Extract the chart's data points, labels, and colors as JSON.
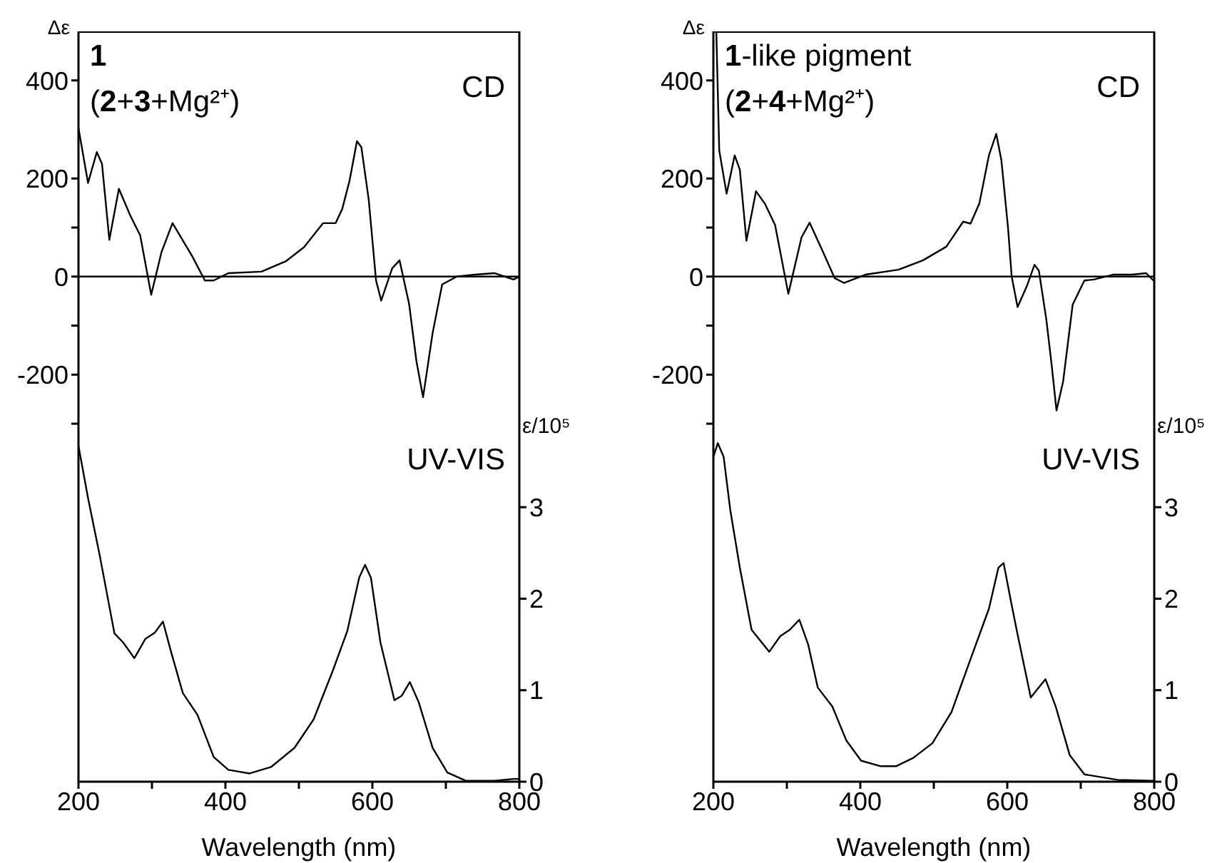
{
  "chart_data": [
    {
      "type": "line",
      "xlabel": "Wavelength (nm)",
      "ylabel": "Δε",
      "y2label": "ε/10⁵",
      "annotations": [
        "1",
        "(2+3+Mg²⁺)",
        "CD",
        "UV-VIS"
      ],
      "xlim": [
        200,
        800
      ],
      "xticks": [
        200,
        {
          "value": 300,
          "label": null
        },
        400,
        {
          "value": 500,
          "label": null
        },
        600,
        {
          "value": 700,
          "label": null
        },
        800
      ],
      "ylim": [
        -1030,
        500
      ],
      "yticks": [
        -200,
        {
          "value": -300,
          "label": null
        },
        {
          "value": -100,
          "label": null
        },
        0,
        {
          "value": 100,
          "label": null
        },
        200,
        400
      ],
      "y2lim": [
        0,
        8.2
      ],
      "y2ticks": [
        0,
        1,
        2,
        3
      ],
      "marker": "none",
      "line_style": "solid",
      "ref_lines": [
        {
          "axis": "y",
          "value": 0,
          "color": "#000000"
        }
      ],
      "series": [
        {
          "color": "#000000",
          "x": [
            200,
            213,
            225,
            232,
            242,
            255,
            271,
            284,
            299,
            313,
            328,
            355,
            372,
            384,
            404,
            449,
            482,
            507,
            533,
            550,
            559,
            569,
            579,
            585,
            595,
            605,
            612,
            627,
            637,
            650,
            660,
            669,
            682,
            695,
            715,
            740,
            766,
            792,
            800
          ],
          "values": [
            303,
            191,
            254,
            230,
            75,
            179,
            123,
            84,
            -37,
            50,
            109,
            41,
            -8,
            -8,
            7,
            10,
            31,
            60,
            109,
            109,
            138,
            196,
            276,
            264,
            157,
            -8,
            -49,
            17,
            33,
            -56,
            -173,
            -246,
            -115,
            -16,
            0,
            4,
            7,
            -6,
            0
          ]
        },
        {
          "color": "#000000",
          "axis": "y2",
          "x": [
            200,
            213,
            229,
            249,
            261,
            276,
            291,
            304,
            315,
            326,
            342,
            362,
            384,
            404,
            433,
            462,
            494,
            520,
            546,
            566,
            582,
            590,
            598,
            611,
            630,
            640,
            651,
            663,
            682,
            702,
            727,
            766,
            792,
            800
          ],
          "values": [
            3.67,
            3.1,
            2.47,
            1.62,
            1.52,
            1.35,
            1.56,
            1.63,
            1.75,
            1.42,
            0.97,
            0.73,
            0.27,
            0.13,
            0.09,
            0.16,
            0.37,
            0.68,
            1.21,
            1.65,
            2.23,
            2.37,
            2.23,
            1.52,
            0.89,
            0.94,
            1.09,
            0.87,
            0.37,
            0.1,
            0.01,
            0.01,
            0.03,
            0.03
          ]
        }
      ]
    },
    {
      "type": "line",
      "xlabel": "Wavelength (nm)",
      "ylabel": "Δε",
      "y2label": "ε/10⁵",
      "annotations": [
        "1-like pigment",
        "(2+4+Mg²⁺)",
        "CD",
        "UV-VIS"
      ],
      "xlim": [
        200,
        800
      ],
      "xticks": [
        200,
        {
          "value": 300,
          "label": null
        },
        400,
        {
          "value": 500,
          "label": null
        },
        600,
        {
          "value": 700,
          "label": null
        },
        800
      ],
      "ylim": [
        -1030,
        500
      ],
      "yticks": [
        -200,
        {
          "value": -300,
          "label": null
        },
        {
          "value": -100,
          "label": null
        },
        0,
        {
          "value": 100,
          "label": null
        },
        200,
        400
      ],
      "y2lim": [
        0,
        8.2
      ],
      "y2ticks": [
        0,
        1,
        2,
        3
      ],
      "marker": "none",
      "line_style": "solid",
      "ref_lines": [
        {
          "axis": "y",
          "value": 0,
          "color": "#000000"
        }
      ],
      "series": [
        {
          "color": "#000000",
          "x": [
            204,
            208,
            218,
            229,
            236,
            245,
            258,
            270,
            284,
            302,
            320,
            331,
            349,
            365,
            378,
            407,
            452,
            485,
            517,
            540,
            550,
            562,
            575,
            585,
            592,
            601,
            606,
            614,
            627,
            637,
            643,
            653,
            660,
            667,
            676,
            689,
            705,
            718,
            744,
            770,
            789,
            799
          ],
          "values": [
            500,
            257,
            169,
            247,
            218,
            73,
            174,
            149,
            105,
            -35,
            80,
            110,
            51,
            -3,
            -13,
            4,
            14,
            33,
            61,
            112,
            108,
            149,
            247,
            291,
            237,
            100,
            0,
            -62,
            -18,
            24,
            12,
            -86,
            -175,
            -273,
            -214,
            -57,
            -8,
            -6,
            4,
            4,
            7,
            -8
          ]
        },
        {
          "color": "#000000",
          "axis": "y2",
          "x": [
            200,
            206,
            214,
            223,
            236,
            252,
            265,
            276,
            291,
            304,
            317,
            329,
            342,
            362,
            381,
            401,
            427,
            449,
            472,
            498,
            524,
            550,
            575,
            588,
            595,
            605,
            614,
            632,
            643,
            652,
            666,
            685,
            705,
            750,
            799
          ],
          "values": [
            3.55,
            3.7,
            3.55,
            2.97,
            2.34,
            1.66,
            1.53,
            1.42,
            1.59,
            1.66,
            1.77,
            1.5,
            1.03,
            0.82,
            0.45,
            0.23,
            0.17,
            0.17,
            0.26,
            0.42,
            0.76,
            1.34,
            1.89,
            2.34,
            2.39,
            1.97,
            1.61,
            0.92,
            1.03,
            1.12,
            0.82,
            0.29,
            0.08,
            0.02,
            0.01
          ]
        }
      ]
    }
  ]
}
